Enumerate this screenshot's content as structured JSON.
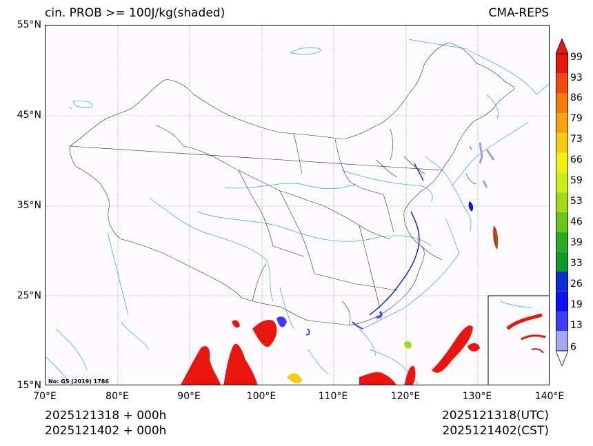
{
  "header": {
    "title_left": "cin. PROB >= 100J/kg(shaded)",
    "title_right": "CMA-REPS"
  },
  "map": {
    "lat_labels": [
      "55°N",
      "45°N",
      "35°N",
      "25°N",
      "15°N"
    ],
    "lon_labels": [
      "70°E",
      "80°E",
      "90°E",
      "100°E",
      "110°E",
      "120°E",
      "130°E",
      "140°E"
    ],
    "watermark": "No: GS (2019) 1786",
    "colors": {
      "border": "#000000",
      "river": "#29a9d9",
      "grid": "#888888",
      "shade_high": "#e8160c",
      "shade_low": "#9a9ef0"
    }
  },
  "colorbar": {
    "levels": [
      "99",
      "93",
      "86",
      "79",
      "73",
      "66",
      "59",
      "53",
      "46",
      "39",
      "33",
      "26",
      "19",
      "13",
      "6"
    ],
    "colors": [
      "#e8160c",
      "#f24a0a",
      "#f77c06",
      "#f9a50a",
      "#f9cb0a",
      "#f2f20a",
      "#cdee12",
      "#a0dc14",
      "#6cc41a",
      "#2aaa1c",
      "#0e9a2a",
      "#0a2fd1",
      "#0a12f5",
      "#3c3cf2",
      "#a6a8f4"
    ],
    "over_color": "#e8160c",
    "under_color": "#ffffff"
  },
  "footer": {
    "left_line1": "2025121318  +  000h",
    "left_line2": "2025121402  +  000h",
    "right_line1": "2025121318(UTC)",
    "right_line2": "2025121402(CST)"
  }
}
